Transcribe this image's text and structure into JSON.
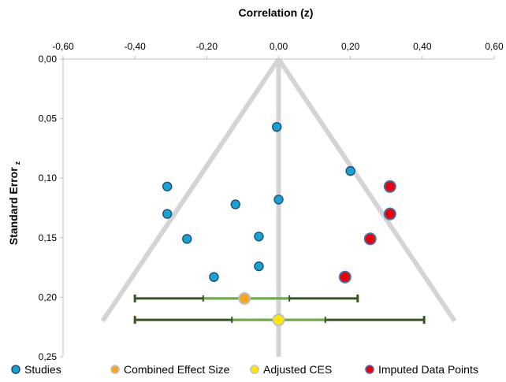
{
  "chart_data": {
    "type": "scatter",
    "title": "",
    "xlabel": "Correlation (z)",
    "ylabel": "Standard Error",
    "ylabel_subscript": "z",
    "xlim": [
      -0.6,
      0.6
    ],
    "ylim": [
      0.0,
      0.25
    ],
    "x_axis_position": "top",
    "y_axis_inverted": true,
    "grid": false,
    "x_ticks": [
      "-0,60",
      "-0,40",
      "-0,20",
      "0,00",
      "0,20",
      "0,40",
      "0,60"
    ],
    "x_tick_values": [
      -0.6,
      -0.4,
      -0.2,
      0.0,
      0.2,
      0.4,
      0.6
    ],
    "y_ticks": [
      "0,00",
      "0,05",
      "0,10",
      "0,15",
      "0,20",
      "0,25"
    ],
    "y_tick_values": [
      0.0,
      0.05,
      0.1,
      0.15,
      0.2,
      0.25
    ],
    "legend_position": "bottom",
    "funnel": {
      "center": 0.0,
      "apex_se": 0.0,
      "base_se": 0.22,
      "left_x": -0.49,
      "right_x": 0.49,
      "color": "#d4d4d4"
    },
    "series": [
      {
        "name": "Studies",
        "color": "#1aa3d1",
        "stroke": "#1f4e79",
        "points": [
          {
            "x": -0.005,
            "y": 0.057
          },
          {
            "x": 0.2,
            "y": 0.094
          },
          {
            "x": -0.31,
            "y": 0.107
          },
          {
            "x": 0.0,
            "y": 0.118
          },
          {
            "x": -0.12,
            "y": 0.122
          },
          {
            "x": -0.31,
            "y": 0.13
          },
          {
            "x": -0.255,
            "y": 0.151
          },
          {
            "x": -0.055,
            "y": 0.149
          },
          {
            "x": -0.055,
            "y": 0.174
          },
          {
            "x": -0.18,
            "y": 0.183
          }
        ]
      },
      {
        "name": "Combined Effect Size",
        "color": "#f5a623",
        "stroke": "#c0c0c0",
        "points": [
          {
            "x": -0.095,
            "y": 0.201
          }
        ],
        "ci": [
          -0.4,
          0.22
        ],
        "inner_ticks": [
          -0.21,
          0.03
        ]
      },
      {
        "name": "Adjusted CES",
        "color": "#ffe800",
        "stroke": "#c0c0c0",
        "points": [
          {
            "x": 0.0,
            "y": 0.219
          }
        ],
        "ci": [
          -0.4,
          0.405
        ],
        "inner_ticks": [
          -0.13,
          0.13
        ]
      },
      {
        "name": "Imputed Data Points",
        "color": "#e8000b",
        "stroke": "#4a6fa5",
        "points": [
          {
            "x": 0.31,
            "y": 0.107
          },
          {
            "x": 0.31,
            "y": 0.13
          },
          {
            "x": 0.255,
            "y": 0.151
          },
          {
            "x": 0.185,
            "y": 0.183
          }
        ]
      }
    ],
    "ci_color_outer": "#375623",
    "ci_color_inner": "#70ad47"
  }
}
